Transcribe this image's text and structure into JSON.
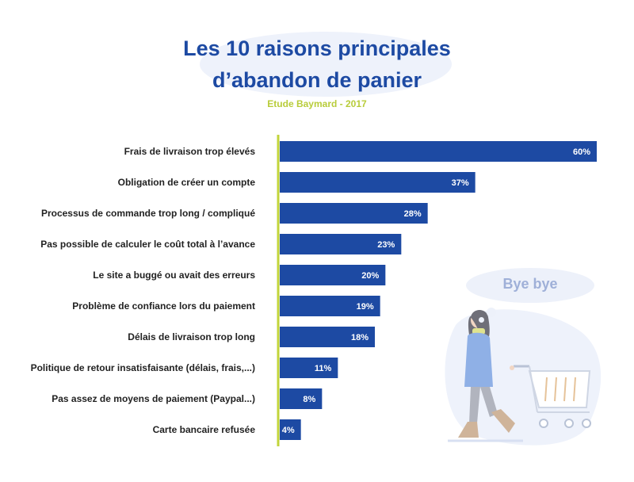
{
  "chart_data": {
    "type": "bar",
    "orientation": "horizontal",
    "title_line1": "Les 10 raisons principales",
    "title_line2": "d’abandon de panier",
    "subtitle": "Etude Baymard - 2017",
    "categories": [
      "Frais de livraison trop élevés",
      "Obligation de créer un compte",
      "Processus de commande trop long / compliqué",
      "Pas possible de calculer le coût total à l’avance",
      "Le site a buggé ou avait des erreurs",
      "Problème de confiance lors du paiement",
      "Délais de livraison trop long",
      "Politique de retour insatisfaisante (délais, frais,...)",
      "Pas assez de moyens de paiement (Paypal...)",
      "Carte bancaire refusée"
    ],
    "values": [
      60,
      37,
      28,
      23,
      20,
      19,
      18,
      11,
      8,
      4
    ],
    "value_suffix": "%",
    "xlim": [
      0,
      60
    ],
    "grid": false,
    "legend": "none",
    "bar_color": "#1d4aa3",
    "axis_color": "#c2d43a"
  },
  "illustration": {
    "bubble_text": "Bye bye",
    "icon": "woman-leaving-shopping-cart-illustration"
  }
}
